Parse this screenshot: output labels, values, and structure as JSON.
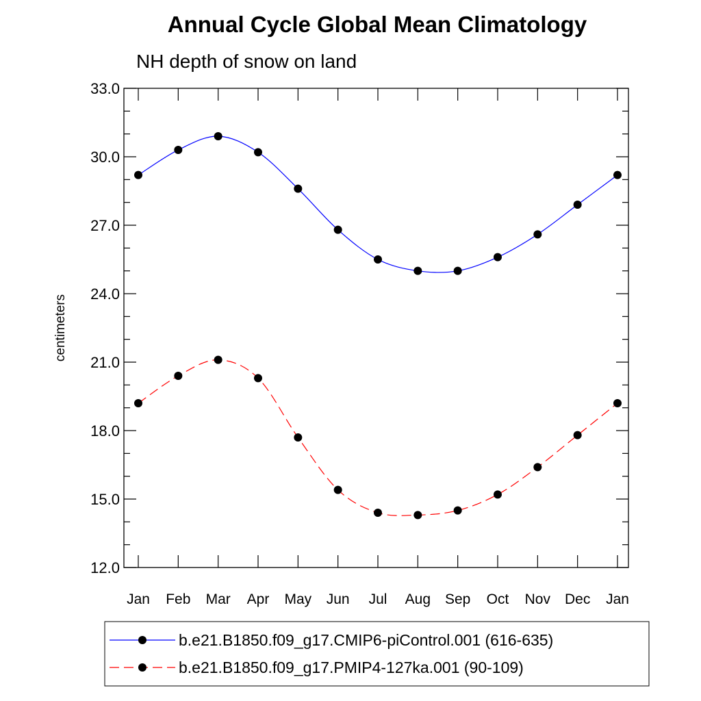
{
  "chart_data": {
    "type": "line",
    "title": "Annual Cycle Global Mean Climatology",
    "subtitle": "NH depth of snow on land",
    "xlabel": "",
    "ylabel": "centimeters",
    "categories": [
      "Jan",
      "Feb",
      "Mar",
      "Apr",
      "May",
      "Jun",
      "Jul",
      "Aug",
      "Sep",
      "Oct",
      "Nov",
      "Dec",
      "Jan"
    ],
    "ylim": [
      12.0,
      33.0
    ],
    "yticks": [
      "12.0",
      "15.0",
      "18.0",
      "21.0",
      "24.0",
      "27.0",
      "30.0",
      "33.0"
    ],
    "grid": false,
    "legend_position": "bottom",
    "series": [
      {
        "name": "b.e21.B1850.f09_g17.CMIP6-piControl.001 (616-635)",
        "color": "#0000ff",
        "line_style": "solid",
        "marker": "filled-circle",
        "values": [
          29.2,
          30.3,
          30.9,
          30.2,
          28.6,
          26.8,
          25.5,
          25.0,
          25.0,
          25.6,
          26.6,
          27.9,
          29.2
        ]
      },
      {
        "name": "b.e21.B1850.f09_g17.PMIP4-127ka.001 (90-109)",
        "color": "#ff0000",
        "line_style": "dashed",
        "marker": "filled-circle",
        "values": [
          19.2,
          20.4,
          21.1,
          20.3,
          17.7,
          15.4,
          14.4,
          14.3,
          14.5,
          15.2,
          16.4,
          17.8,
          19.2
        ]
      }
    ]
  }
}
